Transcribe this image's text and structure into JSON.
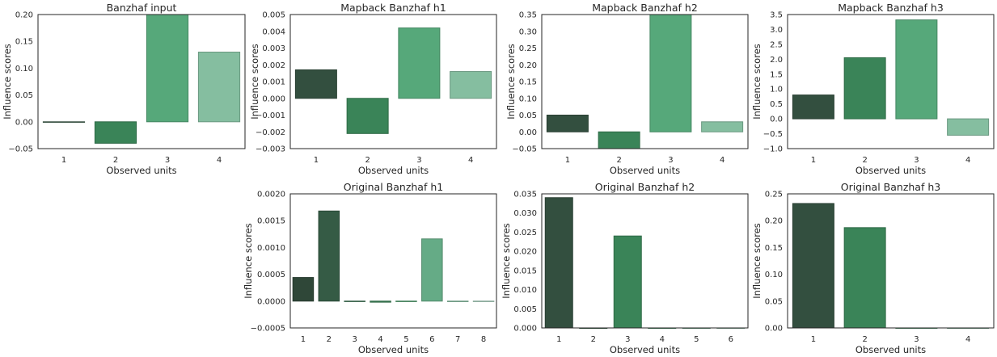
{
  "chart_data": [
    {
      "type": "bar",
      "title": "Banzhaf input",
      "xlabel": "Observed units",
      "ylabel": "Influence scores",
      "categories": [
        "1",
        "2",
        "3",
        "4"
      ],
      "values": [
        0.0,
        -0.04,
        0.2,
        0.13
      ],
      "ylim": [
        -0.05,
        0.2
      ],
      "yticks": [
        -0.05,
        0.0,
        0.05,
        0.1,
        0.15,
        0.2
      ],
      "ytick_labels": [
        "−0.05",
        "0.00",
        "0.05",
        "0.10",
        "0.15",
        "0.20"
      ],
      "colors": [
        "#3a5a47",
        "#3a8458",
        "#56a87a",
        "#85bea0"
      ],
      "grid": false
    },
    {
      "type": "bar",
      "title": "Mapback Banzhaf h1",
      "xlabel": "Observed units",
      "ylabel": "Influence scores",
      "categories": [
        "1",
        "2",
        "3",
        "4"
      ],
      "values": [
        0.0017,
        -0.0021,
        0.0042,
        0.0016
      ],
      "ylim": [
        -0.003,
        0.005
      ],
      "yticks": [
        -0.003,
        -0.002,
        -0.001,
        0.0,
        0.001,
        0.002,
        0.003,
        0.004,
        0.005
      ],
      "ytick_labels": [
        "−0.003",
        "−0.002",
        "−0.001",
        "0.000",
        "0.001",
        "0.002",
        "0.003",
        "0.004",
        "0.005"
      ],
      "colors": [
        "#334f3f",
        "#3a8458",
        "#56a87a",
        "#85bea0"
      ],
      "grid": false
    },
    {
      "type": "bar",
      "title": "Mapback Banzhaf h2",
      "xlabel": "Observed units",
      "ylabel": "Influence scores",
      "categories": [
        "1",
        "2",
        "3",
        "4"
      ],
      "values": [
        0.05,
        -0.05,
        0.35,
        0.03
      ],
      "ylim": [
        -0.05,
        0.35
      ],
      "yticks": [
        -0.05,
        0.0,
        0.05,
        0.1,
        0.15,
        0.2,
        0.25,
        0.3,
        0.35
      ],
      "ytick_labels": [
        "−0.05",
        "0.00",
        "0.05",
        "0.10",
        "0.15",
        "0.20",
        "0.25",
        "0.30",
        "0.35"
      ],
      "colors": [
        "#334f3f",
        "#3a8458",
        "#56a87a",
        "#85bea0"
      ],
      "grid": false
    },
    {
      "type": "bar",
      "title": "Mapback Banzhaf h3",
      "xlabel": "Observed units",
      "ylabel": "Influence scores",
      "categories": [
        "1",
        "2",
        "3",
        "4"
      ],
      "values": [
        0.8,
        2.05,
        3.32,
        -0.55
      ],
      "ylim": [
        -1.0,
        3.5
      ],
      "yticks": [
        -1.0,
        -0.5,
        0.0,
        0.5,
        1.0,
        1.5,
        2.0,
        2.5,
        3.0,
        3.5
      ],
      "ytick_labels": [
        "−1.0",
        "−0.5",
        "0.0",
        "0.5",
        "1.0",
        "1.5",
        "2.0",
        "2.5",
        "3.0",
        "3.5"
      ],
      "colors": [
        "#334f3f",
        "#3a8458",
        "#56a87a",
        "#85bea0"
      ],
      "grid": false
    },
    {
      "type": "bar",
      "title": "Original Banzhaf h1",
      "xlabel": "Observed units",
      "ylabel": "Influence scores",
      "categories": [
        "1",
        "2",
        "3",
        "4",
        "5",
        "6",
        "7",
        "8"
      ],
      "values": [
        0.00044,
        0.00168,
        0.0,
        -2e-05,
        0.0,
        0.00116,
        -1e-05,
        0.0
      ],
      "ylim": [
        -0.0005,
        0.002
      ],
      "yticks": [
        -0.0005,
        0.0,
        0.0005,
        0.001,
        0.0015,
        0.002
      ],
      "ytick_labels": [
        "−0.0005",
        "0.0000",
        "0.0005",
        "0.0010",
        "0.0015",
        "0.0020"
      ],
      "colors": [
        "#2f4738",
        "#355b45",
        "#3a7050",
        "#3d8358",
        "#4a9868",
        "#65ab86",
        "#84bda0",
        "#a2cdb8"
      ],
      "grid": false
    },
    {
      "type": "bar",
      "title": "Original Banzhaf h2",
      "xlabel": "Observed units",
      "ylabel": "Influence scores",
      "categories": [
        "1",
        "2",
        "3",
        "4",
        "5",
        "6"
      ],
      "values": [
        0.034,
        0.0,
        0.024,
        0.0,
        0.0,
        0.0
      ],
      "ylim": [
        0.0,
        0.035
      ],
      "yticks": [
        0.0,
        0.005,
        0.01,
        0.015,
        0.02,
        0.025,
        0.03,
        0.035
      ],
      "ytick_labels": [
        "0.000",
        "0.005",
        "0.010",
        "0.015",
        "0.020",
        "0.025",
        "0.030",
        "0.035"
      ],
      "colors": [
        "#334f3f",
        "#346549",
        "#3a8458",
        "#4a9a6a",
        "#6fb08e",
        "#9bcab2"
      ],
      "grid": false
    },
    {
      "type": "bar",
      "title": "Original Banzhaf h3",
      "xlabel": "Observed units",
      "ylabel": "Influence scores",
      "categories": [
        "1",
        "2",
        "3",
        "4"
      ],
      "values": [
        0.232,
        0.187,
        0.0,
        0.0
      ],
      "ylim": [
        0.0,
        0.25
      ],
      "yticks": [
        0.0,
        0.05,
        0.1,
        0.15,
        0.2,
        0.25
      ],
      "ytick_labels": [
        "0.00",
        "0.05",
        "0.10",
        "0.15",
        "0.20",
        "0.25"
      ],
      "colors": [
        "#334f3f",
        "#3a8458",
        "#56a87a",
        "#85bea0"
      ],
      "grid": false
    }
  ]
}
